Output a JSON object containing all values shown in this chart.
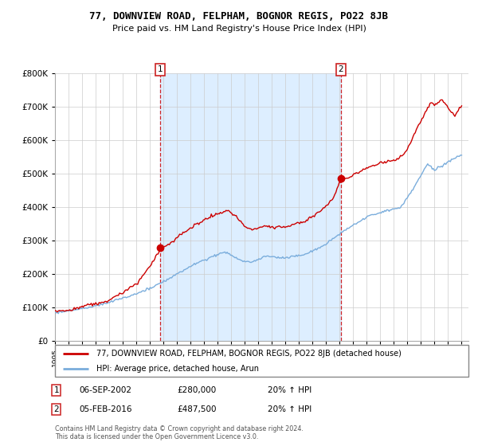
{
  "title1": "77, DOWNVIEW ROAD, FELPHAM, BOGNOR REGIS, PO22 8JB",
  "title2": "Price paid vs. HM Land Registry's House Price Index (HPI)",
  "legend_line1": "77, DOWNVIEW ROAD, FELPHAM, BOGNOR REGIS, PO22 8JB (detached house)",
  "legend_line2": "HPI: Average price, detached house, Arun",
  "annotation1": {
    "num": "1",
    "date": "06-SEP-2002",
    "price": "£280,000",
    "note": "20% ↑ HPI"
  },
  "annotation2": {
    "num": "2",
    "date": "05-FEB-2016",
    "price": "£487,500",
    "note": "20% ↑ HPI"
  },
  "footer": "Contains HM Land Registry data © Crown copyright and database right 2024.\nThis data is licensed under the Open Government Licence v3.0.",
  "red_color": "#cc0000",
  "blue_color": "#7aaddc",
  "shade_color": "#ddeeff",
  "vline_color": "#cc0000",
  "ylim": [
    0,
    800000
  ],
  "yticks": [
    0,
    100000,
    200000,
    300000,
    400000,
    500000,
    600000,
    700000,
    800000
  ],
  "xlim_start": 1995.0,
  "xlim_end": 2025.5,
  "vline1_x": 2002.75,
  "vline2_x": 2016.09,
  "sale1_x": 2002.75,
  "sale1_y": 280000,
  "sale2_x": 2016.09,
  "sale2_y": 487500
}
